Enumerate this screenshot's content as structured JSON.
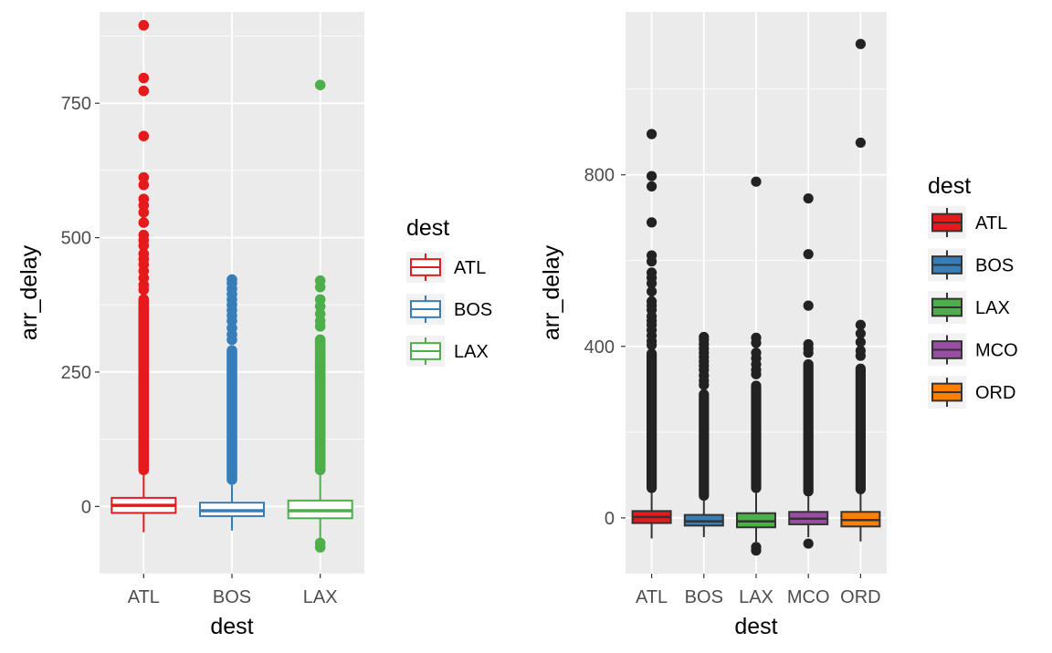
{
  "chart_data": [
    {
      "type": "boxplot",
      "style": "outline",
      "xlabel": "dest",
      "ylabel": "arr_delay",
      "ylim": [
        -125,
        920
      ],
      "y_ticks": [
        0,
        250,
        500,
        750
      ],
      "y_tick_labels": [
        "0",
        "250",
        "500",
        "750"
      ],
      "grid": true,
      "legend": {
        "title": "dest",
        "position": "right",
        "entries": [
          "ATL",
          "BOS",
          "LAX"
        ]
      },
      "series": [
        {
          "name": "ATL",
          "color": "#E41A1C",
          "min": -48,
          "q1": -12,
          "median": 2,
          "q3": 16,
          "max": 58,
          "dense_outliers": [
            58,
            395
          ],
          "outliers": [
            895,
            797,
            773,
            689,
            612,
            598,
            572,
            560,
            547,
            528,
            505,
            495,
            485,
            470,
            460,
            450,
            438,
            425,
            412,
            403
          ]
        },
        {
          "name": "BOS",
          "color": "#377EB8",
          "min": -45,
          "q1": -18,
          "median": -8,
          "q3": 7,
          "max": 40,
          "dense_outliers": [
            40,
            300
          ],
          "outliers": [
            422,
            415,
            405,
            395,
            385,
            375,
            365,
            355,
            345,
            332,
            320,
            310
          ]
        },
        {
          "name": "LAX",
          "color": "#4DAF4A",
          "min": -60,
          "q1": -22,
          "median": -8,
          "q3": 11,
          "max": 58,
          "dense_outliers": [
            58,
            320
          ],
          "outliers": [
            784,
            420,
            408,
            385,
            372,
            358,
            345,
            335,
            -68,
            -76
          ]
        }
      ]
    },
    {
      "type": "boxplot",
      "style": "filled",
      "xlabel": "dest",
      "ylabel": "arr_delay",
      "ylim": [
        -130,
        1180
      ],
      "y_ticks": [
        0,
        400,
        800
      ],
      "y_tick_labels": [
        "0",
        "400",
        "800"
      ],
      "grid": true,
      "legend": {
        "title": "dest",
        "position": "right",
        "entries": [
          "ATL",
          "BOS",
          "LAX",
          "MCO",
          "ORD"
        ]
      },
      "series": [
        {
          "name": "ATL",
          "color": "#E41A1C",
          "min": -48,
          "q1": -12,
          "median": 2,
          "q3": 16,
          "max": 58,
          "dense_outliers": [
            58,
            395
          ],
          "outliers": [
            895,
            797,
            773,
            689,
            612,
            598,
            572,
            560,
            547,
            528,
            505,
            495,
            485,
            470,
            460,
            450,
            438,
            425,
            412,
            403
          ]
        },
        {
          "name": "BOS",
          "color": "#377EB8",
          "min": -45,
          "q1": -18,
          "median": -8,
          "q3": 7,
          "max": 40,
          "dense_outliers": [
            40,
            300
          ],
          "outliers": [
            422,
            415,
            405,
            395,
            385,
            375,
            365,
            355,
            345,
            332,
            320,
            310
          ]
        },
        {
          "name": "LAX",
          "color": "#4DAF4A",
          "min": -60,
          "q1": -22,
          "median": -8,
          "q3": 11,
          "max": 58,
          "dense_outliers": [
            58,
            320
          ],
          "outliers": [
            784,
            420,
            408,
            385,
            372,
            358,
            345,
            335,
            -68,
            -76
          ]
        },
        {
          "name": "MCO",
          "color": "#984EA3",
          "min": -45,
          "q1": -15,
          "median": -2,
          "q3": 14,
          "max": 50,
          "dense_outliers": [
            50,
            370
          ],
          "outliers": [
            745,
            615,
            495,
            405,
            395,
            385,
            -60
          ]
        },
        {
          "name": "ORD",
          "color": "#FF7F00",
          "min": -55,
          "q1": -20,
          "median": -5,
          "q3": 14,
          "max": 55,
          "dense_outliers": [
            55,
            360
          ],
          "outliers": [
            1105,
            875,
            450,
            430,
            410,
            390,
            378
          ]
        }
      ]
    }
  ]
}
